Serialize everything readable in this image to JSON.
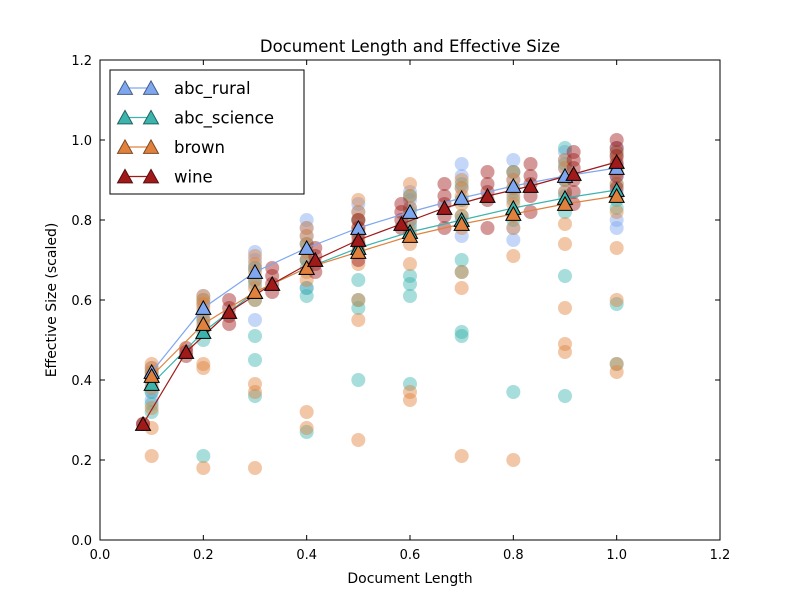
{
  "chart_data": {
    "type": "scatter",
    "title": "Document Length and Effective Size",
    "xlabel": "Document Length",
    "ylabel": "Effective Size (scaled)",
    "xlim": [
      0.0,
      1.2
    ],
    "ylim": [
      0.0,
      1.2
    ],
    "xticks": [
      "0.0",
      "0.2",
      "0.4",
      "0.6",
      "0.8",
      "1.0",
      "1.2"
    ],
    "yticks": [
      "0.0",
      "0.2",
      "0.4",
      "0.6",
      "0.8",
      "1.0",
      "1.2"
    ],
    "grid": false,
    "legend": {
      "placement": "top-left"
    },
    "series": [
      {
        "name": "abc_rural",
        "color": "#7fa7f0",
        "mean": {
          "x": [
            0.1,
            0.2,
            0.3,
            0.4,
            0.5,
            0.6,
            0.7,
            0.8,
            0.9,
            1.0
          ],
          "y": [
            0.42,
            0.58,
            0.67,
            0.73,
            0.78,
            0.82,
            0.855,
            0.885,
            0.91,
            0.93
          ]
        },
        "points": [
          [
            0.1,
            0.43
          ],
          [
            0.1,
            0.41
          ],
          [
            0.1,
            0.39
          ],
          [
            0.1,
            0.37
          ],
          [
            0.1,
            0.35
          ],
          [
            0.2,
            0.61
          ],
          [
            0.2,
            0.59
          ],
          [
            0.2,
            0.57
          ],
          [
            0.2,
            0.55
          ],
          [
            0.2,
            0.53
          ],
          [
            0.3,
            0.72
          ],
          [
            0.3,
            0.7
          ],
          [
            0.3,
            0.68
          ],
          [
            0.3,
            0.65
          ],
          [
            0.3,
            0.55
          ],
          [
            0.4,
            0.8
          ],
          [
            0.4,
            0.78
          ],
          [
            0.4,
            0.76
          ],
          [
            0.4,
            0.74
          ],
          [
            0.4,
            0.7
          ],
          [
            0.4,
            0.63
          ],
          [
            0.5,
            0.84
          ],
          [
            0.5,
            0.82
          ],
          [
            0.5,
            0.8
          ],
          [
            0.5,
            0.77
          ],
          [
            0.5,
            0.74
          ],
          [
            0.6,
            0.87
          ],
          [
            0.6,
            0.85
          ],
          [
            0.6,
            0.83
          ],
          [
            0.6,
            0.8
          ],
          [
            0.6,
            0.78
          ],
          [
            0.7,
            0.94
          ],
          [
            0.7,
            0.91
          ],
          [
            0.7,
            0.88
          ],
          [
            0.7,
            0.85
          ],
          [
            0.7,
            0.8
          ],
          [
            0.7,
            0.76
          ],
          [
            0.8,
            0.95
          ],
          [
            0.8,
            0.92
          ],
          [
            0.8,
            0.9
          ],
          [
            0.8,
            0.87
          ],
          [
            0.8,
            0.78
          ],
          [
            0.8,
            0.75
          ],
          [
            0.9,
            0.97
          ],
          [
            0.9,
            0.95
          ],
          [
            0.9,
            0.93
          ],
          [
            0.9,
            0.9
          ],
          [
            0.9,
            0.87
          ],
          [
            1.0,
            0.98
          ],
          [
            1.0,
            0.96
          ],
          [
            1.0,
            0.94
          ],
          [
            1.0,
            0.91
          ],
          [
            1.0,
            0.87
          ],
          [
            1.0,
            0.8
          ],
          [
            1.0,
            0.78
          ]
        ]
      },
      {
        "name": "abc_science",
        "color": "#3cb4ad",
        "mean": {
          "x": [
            0.1,
            0.2,
            0.3,
            0.4,
            0.5,
            0.6,
            0.7,
            0.8,
            0.9,
            1.0
          ],
          "y": [
            0.39,
            0.52,
            0.62,
            0.68,
            0.73,
            0.77,
            0.8,
            0.83,
            0.855,
            0.875
          ]
        },
        "points": [
          [
            0.1,
            0.42
          ],
          [
            0.1,
            0.4
          ],
          [
            0.1,
            0.37
          ],
          [
            0.1,
            0.34
          ],
          [
            0.1,
            0.32
          ],
          [
            0.2,
            0.6
          ],
          [
            0.2,
            0.55
          ],
          [
            0.2,
            0.52
          ],
          [
            0.2,
            0.5
          ],
          [
            0.2,
            0.21
          ],
          [
            0.3,
            0.68
          ],
          [
            0.3,
            0.64
          ],
          [
            0.3,
            0.6
          ],
          [
            0.3,
            0.51
          ],
          [
            0.3,
            0.45
          ],
          [
            0.3,
            0.36
          ],
          [
            0.4,
            0.74
          ],
          [
            0.4,
            0.7
          ],
          [
            0.4,
            0.68
          ],
          [
            0.4,
            0.63
          ],
          [
            0.4,
            0.61
          ],
          [
            0.4,
            0.27
          ],
          [
            0.5,
            0.8
          ],
          [
            0.5,
            0.77
          ],
          [
            0.5,
            0.74
          ],
          [
            0.5,
            0.65
          ],
          [
            0.5,
            0.6
          ],
          [
            0.5,
            0.58
          ],
          [
            0.5,
            0.4
          ],
          [
            0.6,
            0.86
          ],
          [
            0.6,
            0.82
          ],
          [
            0.6,
            0.79
          ],
          [
            0.6,
            0.76
          ],
          [
            0.6,
            0.66
          ],
          [
            0.6,
            0.64
          ],
          [
            0.6,
            0.61
          ],
          [
            0.6,
            0.39
          ],
          [
            0.7,
            0.89
          ],
          [
            0.7,
            0.85
          ],
          [
            0.7,
            0.81
          ],
          [
            0.7,
            0.7
          ],
          [
            0.7,
            0.67
          ],
          [
            0.7,
            0.52
          ],
          [
            0.7,
            0.51
          ],
          [
            0.8,
            0.92
          ],
          [
            0.8,
            0.88
          ],
          [
            0.8,
            0.85
          ],
          [
            0.8,
            0.8
          ],
          [
            0.8,
            0.37
          ],
          [
            0.9,
            0.98
          ],
          [
            0.9,
            0.94
          ],
          [
            0.9,
            0.9
          ],
          [
            0.9,
            0.86
          ],
          [
            0.9,
            0.82
          ],
          [
            0.9,
            0.66
          ],
          [
            0.9,
            0.36
          ],
          [
            1.0,
            0.97
          ],
          [
            1.0,
            0.93
          ],
          [
            1.0,
            0.89
          ],
          [
            1.0,
            0.85
          ],
          [
            1.0,
            0.83
          ],
          [
            1.0,
            0.59
          ],
          [
            1.0,
            0.44
          ]
        ]
      },
      {
        "name": "brown",
        "color": "#e0823e",
        "mean": {
          "x": [
            0.1,
            0.2,
            0.3,
            0.4,
            0.5,
            0.6,
            0.7,
            0.8,
            0.9,
            1.0
          ],
          "y": [
            0.41,
            0.54,
            0.62,
            0.68,
            0.72,
            0.76,
            0.79,
            0.815,
            0.84,
            0.86
          ]
        },
        "points": [
          [
            0.1,
            0.44
          ],
          [
            0.1,
            0.43
          ],
          [
            0.1,
            0.42
          ],
          [
            0.1,
            0.41
          ],
          [
            0.1,
            0.4
          ],
          [
            0.1,
            0.38
          ],
          [
            0.1,
            0.33
          ],
          [
            0.1,
            0.28
          ],
          [
            0.1,
            0.21
          ],
          [
            0.2,
            0.61
          ],
          [
            0.2,
            0.6
          ],
          [
            0.2,
            0.59
          ],
          [
            0.2,
            0.58
          ],
          [
            0.2,
            0.56
          ],
          [
            0.2,
            0.54
          ],
          [
            0.2,
            0.53
          ],
          [
            0.2,
            0.44
          ],
          [
            0.2,
            0.43
          ],
          [
            0.2,
            0.18
          ],
          [
            0.3,
            0.71
          ],
          [
            0.3,
            0.69
          ],
          [
            0.3,
            0.67
          ],
          [
            0.3,
            0.65
          ],
          [
            0.3,
            0.63
          ],
          [
            0.3,
            0.6
          ],
          [
            0.3,
            0.39
          ],
          [
            0.3,
            0.37
          ],
          [
            0.3,
            0.18
          ],
          [
            0.4,
            0.78
          ],
          [
            0.4,
            0.76
          ],
          [
            0.4,
            0.74
          ],
          [
            0.4,
            0.72
          ],
          [
            0.4,
            0.7
          ],
          [
            0.4,
            0.67
          ],
          [
            0.4,
            0.65
          ],
          [
            0.4,
            0.32
          ],
          [
            0.4,
            0.28
          ],
          [
            0.5,
            0.85
          ],
          [
            0.5,
            0.82
          ],
          [
            0.5,
            0.8
          ],
          [
            0.5,
            0.78
          ],
          [
            0.5,
            0.75
          ],
          [
            0.5,
            0.72
          ],
          [
            0.5,
            0.69
          ],
          [
            0.5,
            0.6
          ],
          [
            0.5,
            0.55
          ],
          [
            0.5,
            0.25
          ],
          [
            0.6,
            0.89
          ],
          [
            0.6,
            0.86
          ],
          [
            0.6,
            0.83
          ],
          [
            0.6,
            0.8
          ],
          [
            0.6,
            0.77
          ],
          [
            0.6,
            0.74
          ],
          [
            0.6,
            0.69
          ],
          [
            0.6,
            0.37
          ],
          [
            0.6,
            0.35
          ],
          [
            0.7,
            0.9
          ],
          [
            0.7,
            0.88
          ],
          [
            0.7,
            0.86
          ],
          [
            0.7,
            0.84
          ],
          [
            0.7,
            0.81
          ],
          [
            0.7,
            0.78
          ],
          [
            0.7,
            0.67
          ],
          [
            0.7,
            0.63
          ],
          [
            0.7,
            0.21
          ],
          [
            0.8,
            0.92
          ],
          [
            0.8,
            0.9
          ],
          [
            0.8,
            0.88
          ],
          [
            0.8,
            0.86
          ],
          [
            0.8,
            0.84
          ],
          [
            0.8,
            0.81
          ],
          [
            0.8,
            0.78
          ],
          [
            0.8,
            0.71
          ],
          [
            0.8,
            0.2
          ],
          [
            0.9,
            0.95
          ],
          [
            0.9,
            0.93
          ],
          [
            0.9,
            0.9
          ],
          [
            0.9,
            0.87
          ],
          [
            0.9,
            0.84
          ],
          [
            0.9,
            0.79
          ],
          [
            0.9,
            0.74
          ],
          [
            0.9,
            0.58
          ],
          [
            0.9,
            0.49
          ],
          [
            0.9,
            0.47
          ],
          [
            1.0,
            0.97
          ],
          [
            1.0,
            0.95
          ],
          [
            1.0,
            0.92
          ],
          [
            1.0,
            0.89
          ],
          [
            1.0,
            0.86
          ],
          [
            1.0,
            0.82
          ],
          [
            1.0,
            0.73
          ],
          [
            1.0,
            0.6
          ],
          [
            1.0,
            0.44
          ],
          [
            1.0,
            0.42
          ]
        ]
      },
      {
        "name": "wine",
        "color": "#a01a1a",
        "mean": {
          "x": [
            0.0833,
            0.1667,
            0.25,
            0.3333,
            0.4167,
            0.5,
            0.5833,
            0.6667,
            0.75,
            0.8333,
            0.9167,
            1.0
          ],
          "y": [
            0.29,
            0.47,
            0.57,
            0.64,
            0.7,
            0.75,
            0.79,
            0.83,
            0.86,
            0.885,
            0.915,
            0.945
          ]
        },
        "points": [
          [
            0.0833,
            0.29
          ],
          [
            0.0833,
            0.29
          ],
          [
            0.1667,
            0.48
          ],
          [
            0.1667,
            0.47
          ],
          [
            0.1667,
            0.46
          ],
          [
            0.25,
            0.6
          ],
          [
            0.25,
            0.58
          ],
          [
            0.25,
            0.56
          ],
          [
            0.25,
            0.54
          ],
          [
            0.3333,
            0.68
          ],
          [
            0.3333,
            0.66
          ],
          [
            0.3333,
            0.64
          ],
          [
            0.3333,
            0.62
          ],
          [
            0.4167,
            0.73
          ],
          [
            0.4167,
            0.71
          ],
          [
            0.4167,
            0.69
          ],
          [
            0.4167,
            0.67
          ],
          [
            0.5,
            0.8
          ],
          [
            0.5,
            0.78
          ],
          [
            0.5,
            0.76
          ],
          [
            0.5,
            0.74
          ],
          [
            0.5,
            0.72
          ],
          [
            0.5,
            0.7
          ],
          [
            0.5833,
            0.84
          ],
          [
            0.5833,
            0.82
          ],
          [
            0.5833,
            0.8
          ],
          [
            0.5833,
            0.78
          ],
          [
            0.6667,
            0.89
          ],
          [
            0.6667,
            0.86
          ],
          [
            0.6667,
            0.84
          ],
          [
            0.6667,
            0.81
          ],
          [
            0.6667,
            0.78
          ],
          [
            0.75,
            0.92
          ],
          [
            0.75,
            0.89
          ],
          [
            0.75,
            0.87
          ],
          [
            0.75,
            0.85
          ],
          [
            0.75,
            0.78
          ],
          [
            0.8333,
            0.94
          ],
          [
            0.8333,
            0.91
          ],
          [
            0.8333,
            0.89
          ],
          [
            0.8333,
            0.86
          ],
          [
            0.8333,
            0.82
          ],
          [
            0.9167,
            0.97
          ],
          [
            0.9167,
            0.95
          ],
          [
            0.9167,
            0.93
          ],
          [
            0.9167,
            0.9
          ],
          [
            0.9167,
            0.87
          ],
          [
            0.9167,
            0.84
          ],
          [
            1.0,
            1.0
          ],
          [
            1.0,
            0.98
          ],
          [
            1.0,
            0.96
          ],
          [
            1.0,
            0.94
          ],
          [
            1.0,
            0.91
          ],
          [
            1.0,
            0.88
          ]
        ]
      }
    ]
  }
}
